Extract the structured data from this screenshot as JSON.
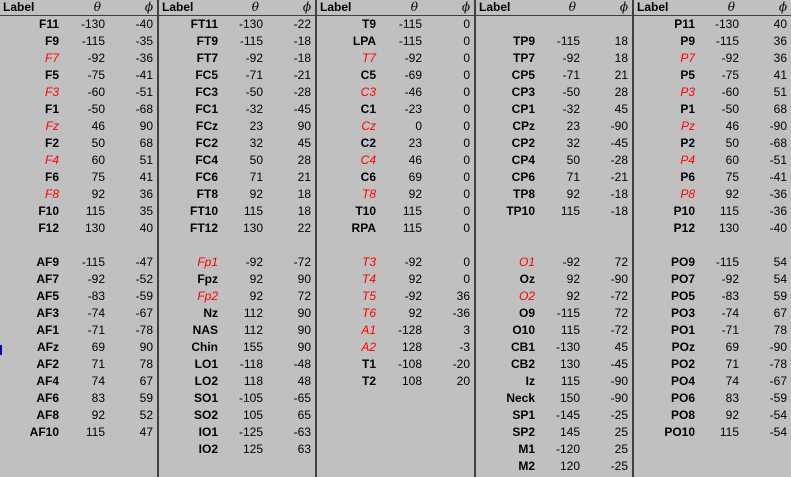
{
  "header": {
    "label": "Label",
    "theta": "θ",
    "phi": "ϕ"
  },
  "columns": [
    {
      "rows": [
        {
          "label": "F11",
          "theta": "-130",
          "phi": "-40",
          "red": false
        },
        {
          "label": "F9",
          "theta": "-115",
          "phi": "-35",
          "red": false
        },
        {
          "label": "F7",
          "theta": "-92",
          "phi": "-36",
          "red": true
        },
        {
          "label": "F5",
          "theta": "-75",
          "phi": "-41",
          "red": false
        },
        {
          "label": "F3",
          "theta": "-60",
          "phi": "-51",
          "red": true
        },
        {
          "label": "F1",
          "theta": "-50",
          "phi": "-68",
          "red": false
        },
        {
          "label": "Fz",
          "theta": "46",
          "phi": "90",
          "red": true
        },
        {
          "label": "F2",
          "theta": "50",
          "phi": "68",
          "red": false
        },
        {
          "label": "F4",
          "theta": "60",
          "phi": "51",
          "red": true
        },
        {
          "label": "F6",
          "theta": "75",
          "phi": "41",
          "red": false
        },
        {
          "label": "F8",
          "theta": "92",
          "phi": "36",
          "red": true
        },
        {
          "label": "F10",
          "theta": "115",
          "phi": "35",
          "red": false
        },
        {
          "label": "F12",
          "theta": "130",
          "phi": "40",
          "red": false
        },
        {
          "label": "",
          "theta": "",
          "phi": "",
          "red": false
        },
        {
          "label": "AF9",
          "theta": "-115",
          "phi": "-47",
          "red": false
        },
        {
          "label": "AF7",
          "theta": "-92",
          "phi": "-52",
          "red": false
        },
        {
          "label": "AF5",
          "theta": "-83",
          "phi": "-59",
          "red": false
        },
        {
          "label": "AF3",
          "theta": "-74",
          "phi": "-67",
          "red": false
        },
        {
          "label": "AF1",
          "theta": "-71",
          "phi": "-78",
          "red": false
        },
        {
          "label": "AFz",
          "theta": "69",
          "phi": "90",
          "red": false
        },
        {
          "label": "AF2",
          "theta": "71",
          "phi": "78",
          "red": false
        },
        {
          "label": "AF4",
          "theta": "74",
          "phi": "67",
          "red": false
        },
        {
          "label": "AF6",
          "theta": "83",
          "phi": "59",
          "red": false
        },
        {
          "label": "AF8",
          "theta": "92",
          "phi": "52",
          "red": false
        },
        {
          "label": "AF10",
          "theta": "115",
          "phi": "47",
          "red": false
        }
      ]
    },
    {
      "rows": [
        {
          "label": "FT11",
          "theta": "-130",
          "phi": "-22",
          "red": false
        },
        {
          "label": "FT9",
          "theta": "-115",
          "phi": "-18",
          "red": false
        },
        {
          "label": "FT7",
          "theta": "-92",
          "phi": "-18",
          "red": false
        },
        {
          "label": "FC5",
          "theta": "-71",
          "phi": "-21",
          "red": false
        },
        {
          "label": "FC3",
          "theta": "-50",
          "phi": "-28",
          "red": false
        },
        {
          "label": "FC1",
          "theta": "-32",
          "phi": "-45",
          "red": false
        },
        {
          "label": "FCz",
          "theta": "23",
          "phi": "90",
          "red": false
        },
        {
          "label": "FC2",
          "theta": "32",
          "phi": "45",
          "red": false
        },
        {
          "label": "FC4",
          "theta": "50",
          "phi": "28",
          "red": false
        },
        {
          "label": "FC6",
          "theta": "71",
          "phi": "21",
          "red": false
        },
        {
          "label": "FT8",
          "theta": "92",
          "phi": "18",
          "red": false
        },
        {
          "label": "FT10",
          "theta": "115",
          "phi": "18",
          "red": false
        },
        {
          "label": "FT12",
          "theta": "130",
          "phi": "22",
          "red": false
        },
        {
          "label": "",
          "theta": "",
          "phi": "",
          "red": false
        },
        {
          "label": "Fp1",
          "theta": "-92",
          "phi": "-72",
          "red": true
        },
        {
          "label": "Fpz",
          "theta": "92",
          "phi": "90",
          "red": false
        },
        {
          "label": "Fp2",
          "theta": "92",
          "phi": "72",
          "red": true
        },
        {
          "label": "Nz",
          "theta": "112",
          "phi": "90",
          "red": false
        },
        {
          "label": "NAS",
          "theta": "112",
          "phi": "90",
          "red": false
        },
        {
          "label": "Chin",
          "theta": "155",
          "phi": "90",
          "red": false
        },
        {
          "label": "LO1",
          "theta": "-118",
          "phi": "-48",
          "red": false
        },
        {
          "label": "LO2",
          "theta": "118",
          "phi": "48",
          "red": false
        },
        {
          "label": "SO1",
          "theta": "-105",
          "phi": "-65",
          "red": false
        },
        {
          "label": "SO2",
          "theta": "105",
          "phi": "65",
          "red": false
        },
        {
          "label": "IO1",
          "theta": "-125",
          "phi": "-63",
          "red": false
        },
        {
          "label": "IO2",
          "theta": "125",
          "phi": "63",
          "red": false
        }
      ]
    },
    {
      "rows": [
        {
          "label": "T9",
          "theta": "-115",
          "phi": "0",
          "red": false
        },
        {
          "label": "LPA",
          "theta": "-115",
          "phi": "0",
          "red": false
        },
        {
          "label": "T7",
          "theta": "-92",
          "phi": "0",
          "red": true
        },
        {
          "label": "C5",
          "theta": "-69",
          "phi": "0",
          "red": false
        },
        {
          "label": "C3",
          "theta": "-46",
          "phi": "0",
          "red": true
        },
        {
          "label": "C1",
          "theta": "-23",
          "phi": "0",
          "red": false
        },
        {
          "label": "Cz",
          "theta": "0",
          "phi": "0",
          "red": true
        },
        {
          "label": "C2",
          "theta": "23",
          "phi": "0",
          "red": false
        },
        {
          "label": "C4",
          "theta": "46",
          "phi": "0",
          "red": true
        },
        {
          "label": "C6",
          "theta": "69",
          "phi": "0",
          "red": false
        },
        {
          "label": "T8",
          "theta": "92",
          "phi": "0",
          "red": true
        },
        {
          "label": "T10",
          "theta": "115",
          "phi": "0",
          "red": false
        },
        {
          "label": "RPA",
          "theta": "115",
          "phi": "0",
          "red": false
        },
        {
          "label": "",
          "theta": "",
          "phi": "",
          "red": false
        },
        {
          "label": "T3",
          "theta": "-92",
          "phi": "0",
          "red": true
        },
        {
          "label": "T4",
          "theta": "92",
          "phi": "0",
          "red": true
        },
        {
          "label": "T5",
          "theta": "-92",
          "phi": "36",
          "red": true
        },
        {
          "label": "T6",
          "theta": "92",
          "phi": "-36",
          "red": true
        },
        {
          "label": "A1",
          "theta": "-128",
          "phi": "3",
          "red": true
        },
        {
          "label": "A2",
          "theta": "128",
          "phi": "-3",
          "red": true
        },
        {
          "label": "T1",
          "theta": "-108",
          "phi": "-20",
          "red": false
        },
        {
          "label": "T2",
          "theta": "108",
          "phi": "20",
          "red": false
        }
      ]
    },
    {
      "rows": [
        {
          "label": "",
          "theta": "",
          "phi": "",
          "red": false
        },
        {
          "label": "TP9",
          "theta": "-115",
          "phi": "18",
          "red": false
        },
        {
          "label": "TP7",
          "theta": "-92",
          "phi": "18",
          "red": false
        },
        {
          "label": "CP5",
          "theta": "-71",
          "phi": "21",
          "red": false
        },
        {
          "label": "CP3",
          "theta": "-50",
          "phi": "28",
          "red": false
        },
        {
          "label": "CP1",
          "theta": "-32",
          "phi": "45",
          "red": false
        },
        {
          "label": "CPz",
          "theta": "23",
          "phi": "-90",
          "red": false
        },
        {
          "label": "CP2",
          "theta": "32",
          "phi": "-45",
          "red": false
        },
        {
          "label": "CP4",
          "theta": "50",
          "phi": "-28",
          "red": false
        },
        {
          "label": "CP6",
          "theta": "71",
          "phi": "-21",
          "red": false
        },
        {
          "label": "TP8",
          "theta": "92",
          "phi": "-18",
          "red": false
        },
        {
          "label": "TP10",
          "theta": "115",
          "phi": "-18",
          "red": false
        },
        {
          "label": "",
          "theta": "",
          "phi": "",
          "red": false
        },
        {
          "label": "",
          "theta": "",
          "phi": "",
          "red": false
        },
        {
          "label": "O1",
          "theta": "-92",
          "phi": "72",
          "red": true
        },
        {
          "label": "Oz",
          "theta": "92",
          "phi": "-90",
          "red": false
        },
        {
          "label": "O2",
          "theta": "92",
          "phi": "-72",
          "red": true
        },
        {
          "label": "O9",
          "theta": "-115",
          "phi": "72",
          "red": false
        },
        {
          "label": "O10",
          "theta": "115",
          "phi": "-72",
          "red": false
        },
        {
          "label": "CB1",
          "theta": "-130",
          "phi": "45",
          "red": false
        },
        {
          "label": "CB2",
          "theta": "130",
          "phi": "-45",
          "red": false
        },
        {
          "label": "Iz",
          "theta": "115",
          "phi": "-90",
          "red": false
        },
        {
          "label": "Neck",
          "theta": "150",
          "phi": "-90",
          "red": false
        },
        {
          "label": "SP1",
          "theta": "-145",
          "phi": "-25",
          "red": false
        },
        {
          "label": "SP2",
          "theta": "145",
          "phi": "25",
          "red": false
        },
        {
          "label": "M1",
          "theta": "-120",
          "phi": "25",
          "red": false
        },
        {
          "label": "M2",
          "theta": "120",
          "phi": "-25",
          "red": false
        }
      ]
    },
    {
      "rows": [
        {
          "label": "P11",
          "theta": "-130",
          "phi": "40",
          "red": false
        },
        {
          "label": "P9",
          "theta": "-115",
          "phi": "36",
          "red": false
        },
        {
          "label": "P7",
          "theta": "-92",
          "phi": "36",
          "red": true
        },
        {
          "label": "P5",
          "theta": "-75",
          "phi": "41",
          "red": false
        },
        {
          "label": "P3",
          "theta": "-60",
          "phi": "51",
          "red": true
        },
        {
          "label": "P1",
          "theta": "-50",
          "phi": "68",
          "red": false
        },
        {
          "label": "Pz",
          "theta": "46",
          "phi": "-90",
          "red": true
        },
        {
          "label": "P2",
          "theta": "50",
          "phi": "-68",
          "red": false
        },
        {
          "label": "P4",
          "theta": "60",
          "phi": "-51",
          "red": true
        },
        {
          "label": "P6",
          "theta": "75",
          "phi": "-41",
          "red": false
        },
        {
          "label": "P8",
          "theta": "92",
          "phi": "-36",
          "red": true
        },
        {
          "label": "P10",
          "theta": "115",
          "phi": "-36",
          "red": false
        },
        {
          "label": "P12",
          "theta": "130",
          "phi": "-40",
          "red": false
        },
        {
          "label": "",
          "theta": "",
          "phi": "",
          "red": false
        },
        {
          "label": "PO9",
          "theta": "-115",
          "phi": "54",
          "red": false
        },
        {
          "label": "PO7",
          "theta": "-92",
          "phi": "54",
          "red": false
        },
        {
          "label": "PO5",
          "theta": "-83",
          "phi": "59",
          "red": false
        },
        {
          "label": "PO3",
          "theta": "-74",
          "phi": "67",
          "red": false
        },
        {
          "label": "PO1",
          "theta": "-71",
          "phi": "78",
          "red": false
        },
        {
          "label": "POz",
          "theta": "69",
          "phi": "-90",
          "red": false
        },
        {
          "label": "PO2",
          "theta": "71",
          "phi": "-78",
          "red": false
        },
        {
          "label": "PO4",
          "theta": "74",
          "phi": "-67",
          "red": false
        },
        {
          "label": "PO6",
          "theta": "83",
          "phi": "-59",
          "red": false
        },
        {
          "label": "PO8",
          "theta": "92",
          "phi": "-54",
          "red": false
        },
        {
          "label": "PO10",
          "theta": "115",
          "phi": "-54",
          "red": false
        }
      ]
    }
  ]
}
